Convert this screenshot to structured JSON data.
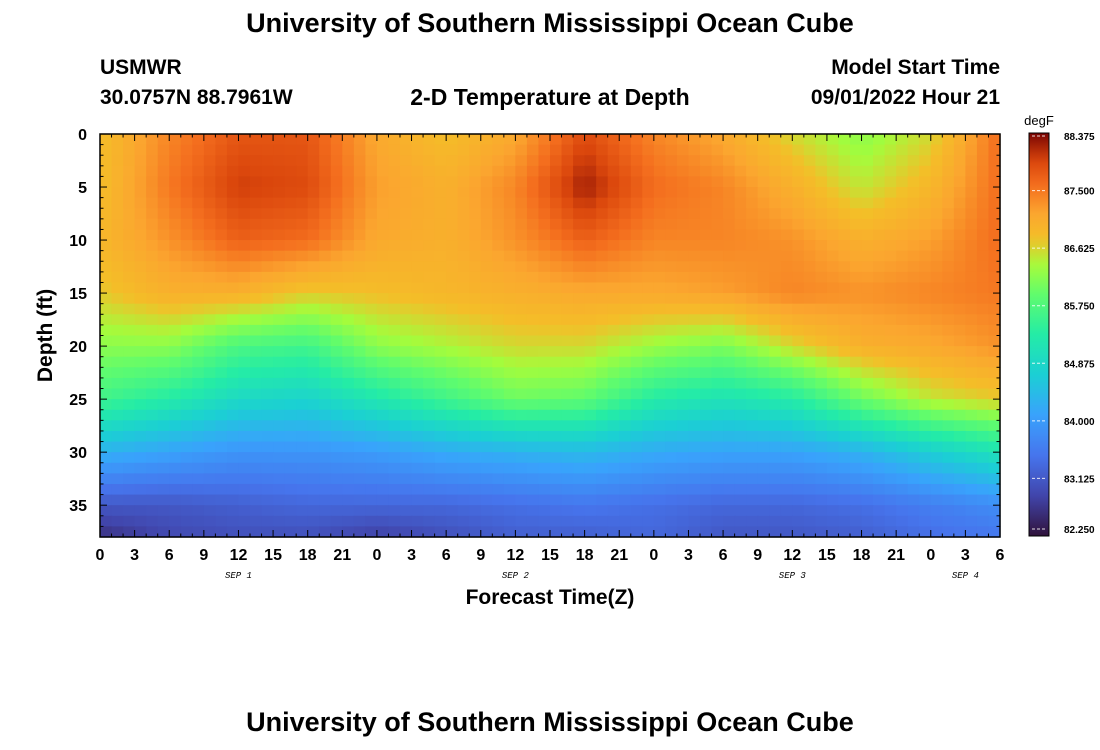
{
  "page": {
    "title": "University of Southern Mississippi Ocean Cube",
    "title_repeat": "University of Southern Mississippi Ocean Cube",
    "station_id": "USMWR",
    "station_coords": "30.0757N  88.7961W",
    "subtitle": "2-D Temperature at Depth",
    "model_start_label": "Model Start Time",
    "model_start_value": "09/01/2022 Hour 21"
  },
  "chart_data": {
    "type": "heatmap",
    "title": "2-D Temperature at Depth",
    "xlabel": "Forecast Time(Z)",
    "ylabel": "Depth (ft)",
    "x_hours_range": [
      0,
      78
    ],
    "x_tick_step_hours": 3,
    "x_tick_labels": [
      "0",
      "3",
      "6",
      "9",
      "12",
      "15",
      "18",
      "21",
      "0",
      "3",
      "6",
      "9",
      "12",
      "15",
      "18",
      "21",
      "0",
      "3",
      "6",
      "9",
      "12",
      "15",
      "18",
      "21",
      "0",
      "3",
      "6"
    ],
    "date_labels": [
      {
        "label": "SEP 1",
        "hour": 12
      },
      {
        "label": "SEP 2",
        "hour": 36
      },
      {
        "label": "SEP 3",
        "hour": 60
      },
      {
        "label": "SEP 4",
        "hour": 75
      }
    ],
    "ylim": [
      0,
      38
    ],
    "y_inverted": true,
    "y_ticks": [
      0,
      5,
      10,
      15,
      20,
      25,
      30,
      35
    ],
    "colorbar": {
      "unit": "degF",
      "min": 82.25,
      "max": 88.375,
      "tick_values": [
        82.25,
        83.125,
        84.0,
        84.875,
        85.75,
        86.625,
        87.5,
        88.375
      ],
      "tick_labels": [
        "82.250",
        "83.125",
        "84.000",
        "84.875",
        "85.750",
        "86.625",
        "87.500",
        "88.375"
      ]
    },
    "grid_hours": [
      0,
      6,
      12,
      18,
      24,
      30,
      36,
      42,
      48,
      54,
      60,
      66,
      72,
      78
    ],
    "grid_depths": [
      0,
      5,
      10,
      15,
      20,
      25,
      30,
      35,
      38
    ],
    "grid_values_degF": [
      [
        86.8,
        87.4,
        87.8,
        87.8,
        87.1,
        86.8,
        87.1,
        87.9,
        87.4,
        87.1,
        86.6,
        86.2,
        86.6,
        87.6
      ],
      [
        86.8,
        87.5,
        88.0,
        87.9,
        87.2,
        87.0,
        87.4,
        88.2,
        87.6,
        87.4,
        87.0,
        86.5,
        86.9,
        87.6
      ],
      [
        86.9,
        87.3,
        87.7,
        87.6,
        87.1,
        87.0,
        87.3,
        87.7,
        87.4,
        87.4,
        87.3,
        87.0,
        87.2,
        87.6
      ],
      [
        86.7,
        87.0,
        87.0,
        86.7,
        86.8,
        86.9,
        87.0,
        87.1,
        87.1,
        87.2,
        87.4,
        87.3,
        87.4,
        87.5
      ],
      [
        86.2,
        86.2,
        85.7,
        85.6,
        86.2,
        86.4,
        86.6,
        86.6,
        86.3,
        86.1,
        86.6,
        87.0,
        87.1,
        87.3
      ],
      [
        85.6,
        85.3,
        84.9,
        84.8,
        85.2,
        85.6,
        86.0,
        85.9,
        85.3,
        85.1,
        85.3,
        86.0,
        86.5,
        86.7
      ],
      [
        84.3,
        84.1,
        83.9,
        83.9,
        84.0,
        84.2,
        84.3,
        84.4,
        84.2,
        84.1,
        84.1,
        84.3,
        84.7,
        85.1
      ],
      [
        83.1,
        83.1,
        83.2,
        83.3,
        83.3,
        83.3,
        83.4,
        83.5,
        83.4,
        83.3,
        83.3,
        83.4,
        83.6,
        83.8
      ],
      [
        82.6,
        82.9,
        83.0,
        83.0,
        82.8,
        83.0,
        83.2,
        83.2,
        83.3,
        83.1,
        83.1,
        83.2,
        83.4,
        83.5
      ]
    ]
  }
}
